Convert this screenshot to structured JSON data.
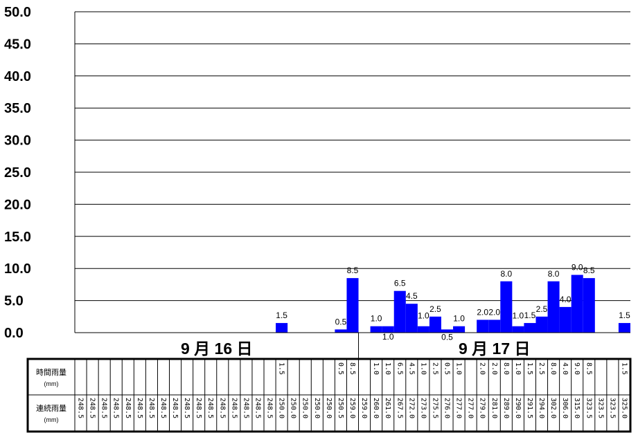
{
  "chart_data": {
    "type": "bar",
    "ylim": [
      0,
      50
    ],
    "y_ticks": [
      "0.0",
      "5.0",
      "10.0",
      "15.0",
      "20.0",
      "25.0",
      "30.0",
      "35.0",
      "40.0",
      "45.0",
      "50.0"
    ],
    "bar_color": "#0000ff",
    "grid": true,
    "days": [
      "9 月 16 日",
      "9 月 17 日"
    ],
    "hourly_values": [
      null,
      null,
      null,
      null,
      null,
      null,
      null,
      null,
      null,
      null,
      null,
      null,
      null,
      null,
      null,
      null,
      null,
      1.5,
      null,
      null,
      null,
      null,
      0.5,
      8.5,
      null,
      1.0,
      1.0,
      6.5,
      4.5,
      1.0,
      2.5,
      0.5,
      1.0,
      null,
      2.0,
      2.0,
      8.0,
      1.0,
      1.5,
      2.5,
      8.0,
      4.0,
      9.0,
      8.5,
      null,
      null,
      1.5
    ],
    "hourly_labels": [
      "",
      "",
      "",
      "",
      "",
      "",
      "",
      "",
      "",
      "",
      "",
      "",
      "",
      "",
      "",
      "",
      "",
      "1.5",
      "",
      "",
      "",
      "",
      "0.5",
      "8.5",
      "",
      "1.0",
      "1.0",
      "6.5",
      "4.5",
      "1.0",
      "2.5",
      "0.5",
      "1.0",
      "",
      "2.0",
      "2.0",
      "8.0",
      "1.0",
      "1.5",
      "2.5",
      "8.0",
      "4.0",
      "9.0",
      "8.5",
      "",
      "",
      "1.5"
    ],
    "cumulative_labels": [
      "248.5",
      "248.5",
      "248.5",
      "248.5",
      "248.5",
      "248.5",
      "248.5",
      "248.5",
      "248.5",
      "248.5",
      "248.5",
      "248.5",
      "248.5",
      "248.5",
      "248.5",
      "248.5",
      "248.5",
      "250.0",
      "250.0",
      "250.0",
      "250.0",
      "250.0",
      "250.5",
      "259.0",
      "259.0",
      "260.0",
      "261.0",
      "267.5",
      "272.0",
      "273.0",
      "275.5",
      "276.0",
      "277.0",
      "277.0",
      "279.0",
      "281.0",
      "289.0",
      "290.0",
      "291.5",
      "294.0",
      "302.0",
      "306.0",
      "315.0",
      "323.5",
      "323.5",
      "323.5",
      "325.0"
    ]
  },
  "table": {
    "row1_label": "時間雨量",
    "row2_label": "連続雨量",
    "unit": "(mm)"
  }
}
